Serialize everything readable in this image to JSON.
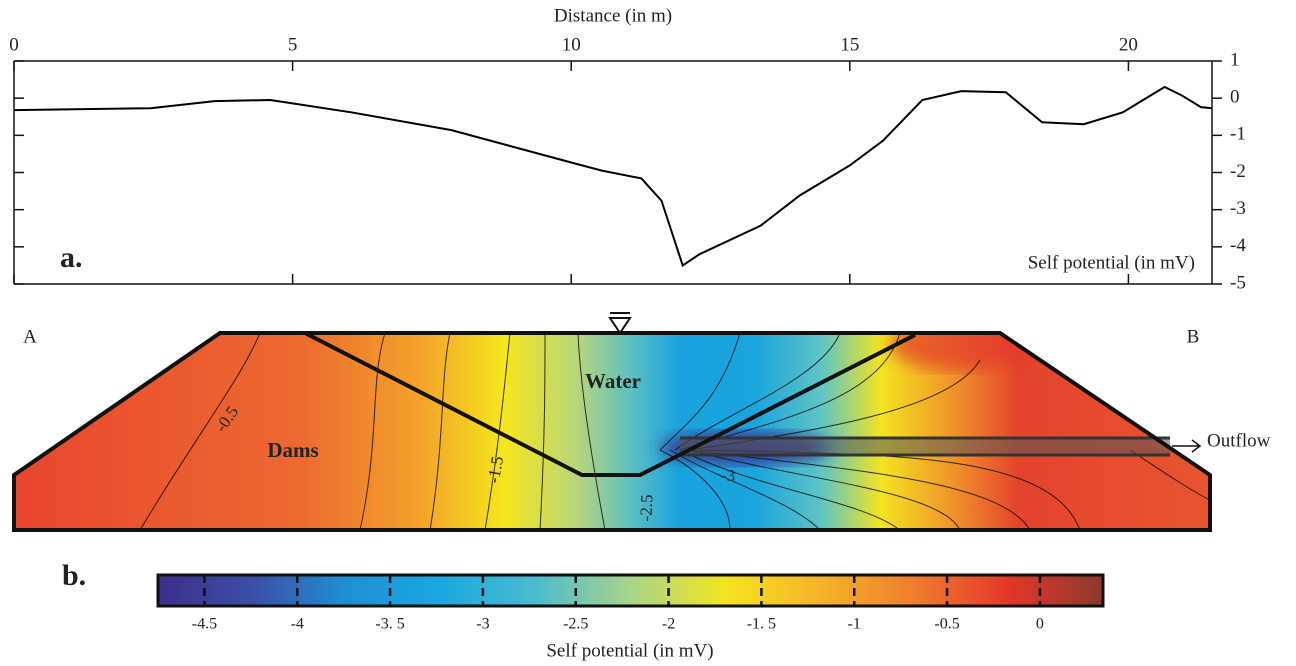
{
  "chart_data": [
    {
      "type": "line",
      "panel_label": "a.",
      "xlabel": "Distance (in m)",
      "ylabel": "Self potential (in mV)",
      "color": "#000000",
      "x": [
        0,
        2.45,
        3.6,
        4.6,
        5,
        6.05,
        7.85,
        10,
        10.55,
        11.26,
        11.62,
        12.0,
        12.3,
        13.4,
        14.1,
        15.0,
        15.6,
        16.3,
        17.0,
        17.8,
        18.45,
        19.2,
        19.9,
        20.65,
        20.95,
        21.3,
        21.5
      ],
      "values": [
        -0.32,
        -0.27,
        -0.08,
        -0.05,
        -0.14,
        -0.38,
        -0.86,
        -1.73,
        -1.95,
        -2.16,
        -2.76,
        -4.5,
        -4.2,
        -3.43,
        -2.62,
        -1.81,
        -1.14,
        -0.05,
        0.19,
        0.16,
        -0.65,
        -0.7,
        -0.38,
        0.3,
        0.08,
        -0.24,
        -0.27
      ],
      "xlim": [
        0,
        21.5
      ],
      "xticks": [
        0,
        5,
        10,
        15,
        20
      ],
      "ylim": [
        -5,
        1
      ],
      "yticks": [
        1,
        0,
        -1,
        -2,
        -3,
        -4,
        -5
      ]
    },
    {
      "type": "colorbar",
      "panel_label": "b.",
      "title": "Self potential (in mV)",
      "clim": [
        -4.75,
        0.34
      ],
      "ticks": [
        -4.5,
        -4,
        {
          "value": -3.5,
          "label": "-3. 5"
        },
        -3,
        -2.5,
        -2,
        {
          "value": -1.5,
          "label": "-1. 5"
        },
        -1,
        -0.5,
        0
      ],
      "colors": [
        "#3b2f8c",
        "#3c4ea8",
        "#1f8fd4",
        "#1ba8e0",
        "#4dbcd0",
        "#a8d48a",
        "#f3e51e",
        "#f6b42a",
        "#ef7d2e",
        "#e3372a",
        "#8a3a2c"
      ],
      "section_labels": {
        "left_end": "A",
        "right_end": "B",
        "water": "Water",
        "dams": "Dams",
        "outflow": "Outflow"
      },
      "contour_levels": [
        -0.5,
        -1.5,
        -2.5,
        -3
      ]
    }
  ]
}
